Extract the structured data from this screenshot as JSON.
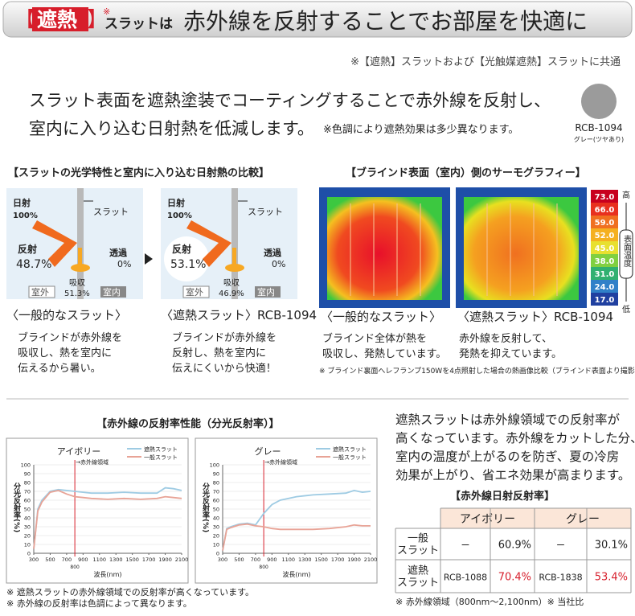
{
  "header": {
    "open": "【",
    "tag": "遮熱",
    "close": "】",
    "sup": "※",
    "slat": "スラットは",
    "title": "赤外線を反射することでお部屋を快適に"
  },
  "note_top": "※【遮熱】スラットおよび【光触媒遮熱】スラットに共通",
  "lead": {
    "line1": "スラット表面を遮熱塗装でコーティングすることで赤外線を反射し、",
    "line2": "室内に入り込む日射熱を低減します。",
    "note": "※色調により遮熱効果は多少異なります。"
  },
  "swatch": {
    "code": "RCB-1094",
    "desc": "グレー(ツヤあり)"
  },
  "optics": {
    "title": "【スラットの光学特性と室内に入り込む日射熱の比較】",
    "diagrams": [
      {
        "incident_label": "日射",
        "incident_value": "100%",
        "slat": "スラット",
        "reflect_label": "反射",
        "reflect_value": "48.7%",
        "trans_label": "透過",
        "trans_value": "0%",
        "absorb_label": "吸収",
        "absorb_value": "51.3%",
        "outside": "室外",
        "inside": "室内",
        "caption": "〈一般的なスラット〉",
        "desc": [
          "ブラインドが赤外線を",
          "吸収し、熱を室内に",
          "伝えるから暑い。"
        ]
      },
      {
        "incident_label": "日射",
        "incident_value": "100%",
        "slat": "スラット",
        "reflect_label": "反射",
        "reflect_value": "53.1%",
        "trans_label": "透過",
        "trans_value": "0%",
        "absorb_label": "吸収",
        "absorb_value": "46.9%",
        "outside": "室外",
        "inside": "室内",
        "caption": "〈遮熱スラット〉RCB-1094",
        "desc": [
          "ブラインドが赤外線を",
          "反射し、熱を室内に",
          "伝えにくいから快適！"
        ]
      }
    ]
  },
  "thermo": {
    "title": "【ブラインド表面（室内）側のサーモグラフィー】",
    "items": [
      {
        "caption": "〈一般的なスラット〉",
        "desc": [
          "ブラインド全体が熱を",
          "吸収し、発熱しています。"
        ]
      },
      {
        "caption": "〈遮熱スラット〉RCB-1094",
        "desc": [
          "赤外線を反射して、",
          "発熱を抑えています。"
        ]
      }
    ],
    "scale": [
      "73.0",
      "66.0",
      "59.0",
      "52.0",
      "45.0",
      "38.0",
      "31.0",
      "24.0",
      "17.0"
    ],
    "high": "高",
    "axis": "表面温度",
    "low": "低",
    "note": "※ ブラインド裏面へレフランプ150Wを4点照射した場合の熱画像比較（ブラインド表面より撮影）"
  },
  "spectral_title": "【赤外線の反射率性能（分光反射率）】",
  "chart_data": [
    {
      "type": "line",
      "title": "アイボリー",
      "x": [
        300,
        350,
        400,
        500,
        600,
        700,
        800,
        900,
        1000,
        1200,
        1400,
        1600,
        1800,
        1900,
        2000,
        2100
      ],
      "series": [
        {
          "name": "遮熱スラット",
          "color": "#9ecbe3",
          "values": [
            5,
            50,
            60,
            70,
            72,
            71,
            70,
            69,
            68,
            68,
            69,
            68,
            68,
            74,
            73,
            71
          ]
        },
        {
          "name": "一般スラット",
          "color": "#e8a396",
          "values": [
            5,
            48,
            58,
            69,
            71,
            67,
            64,
            63,
            62,
            61,
            62,
            61,
            62,
            64,
            63,
            62
          ]
        }
      ],
      "xlim": [
        300,
        2100
      ],
      "ylim": [
        0,
        100
      ],
      "xticks": [
        300,
        500,
        700,
        900,
        1100,
        1300,
        1500,
        1700,
        1900,
        2100
      ],
      "yticks": [
        0,
        10,
        20,
        30,
        40,
        50,
        60,
        70,
        80,
        90,
        100
      ],
      "xlabel": "波長(nm)",
      "ylabel": "分光反射率(%)",
      "annotation": "→赤外線領域",
      "marker": 800,
      "grid": true
    },
    {
      "type": "line",
      "title": "グレー",
      "x": [
        300,
        350,
        400,
        500,
        600,
        700,
        800,
        900,
        1000,
        1200,
        1400,
        1600,
        1800,
        1900,
        2000,
        2100
      ],
      "series": [
        {
          "name": "遮熱スラット",
          "color": "#9ecbe3",
          "values": [
            3,
            28,
            30,
            33,
            34,
            32,
            45,
            55,
            60,
            64,
            66,
            67,
            68,
            71,
            69,
            70
          ]
        },
        {
          "name": "一般スラット",
          "color": "#e8a396",
          "values": [
            3,
            27,
            29,
            32,
            33,
            31,
            30,
            28,
            27,
            27,
            27,
            28,
            30,
            32,
            31,
            31
          ]
        }
      ],
      "xlim": [
        300,
        2100
      ],
      "ylim": [
        0,
        100
      ],
      "xticks": [
        300,
        500,
        700,
        900,
        1100,
        1300,
        1500,
        1700,
        1900,
        2100
      ],
      "yticks": [
        0,
        10,
        20,
        30,
        40,
        50,
        60,
        70,
        80,
        90,
        100
      ],
      "xlabel": "波長(nm)",
      "ylabel": "分光反射率(%)",
      "annotation": "→赤外線領域",
      "marker": 800,
      "grid": true
    }
  ],
  "right_text": [
    "遮熱スラットは赤外線領域での反射率が",
    "高くなっています。赤外線をカットした分、",
    "室内の温度が上がるのを防ぎ、夏の冷房",
    "効果が上がり、省エネ効果が高まります。"
  ],
  "table": {
    "title": "【赤外線日射反射率】",
    "headers": [
      "アイボリー",
      "グレー"
    ],
    "rows": [
      {
        "label": [
          "一般",
          "スラット"
        ],
        "cells": [
          "ー",
          "60.9%",
          "ー",
          "30.1%"
        ]
      },
      {
        "label": [
          "遮熱",
          "スラット"
        ],
        "cells": [
          "RCB-1088",
          "70.4%",
          "RCB-1838",
          "53.4%"
        ]
      }
    ],
    "footnote": "※ 赤外線領域（800nm〜2,100nm）※ 当社比"
  },
  "bottom_notes": [
    "※ 遮熱スラットの赤外線領域での反射率が高くなっています。",
    "※ 赤外線の反射率は色調によって異なります。"
  ]
}
